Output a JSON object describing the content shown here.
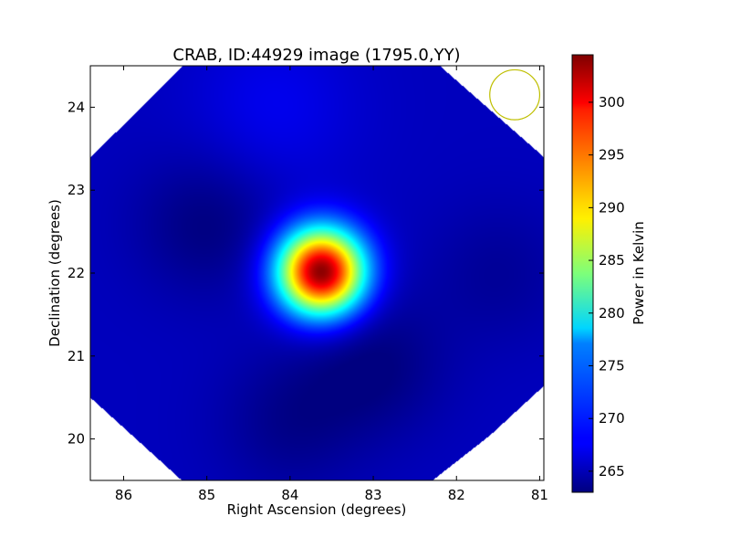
{
  "chart_data": {
    "type": "heatmap",
    "title": "CRAB, ID:44929 image (1795.0,YY)",
    "xlabel": "Right Ascension (degrees)",
    "ylabel": "Declination (degrees)",
    "xlim": [
      86.4,
      80.95
    ],
    "ylim": [
      19.5,
      24.5
    ],
    "x_ticks": [
      86,
      85,
      84,
      83,
      82,
      81
    ],
    "y_ticks": [
      20,
      21,
      22,
      23,
      24
    ],
    "colorbar": {
      "label": "Power in Kelvin",
      "colormap": "jet",
      "range": [
        263,
        304.5
      ],
      "ticks": [
        265,
        270,
        275,
        280,
        285,
        290,
        295,
        300
      ]
    },
    "source": {
      "ra": 83.63,
      "dec": 22.02,
      "peak_kelvin": 304.3,
      "sigma_deg": 0.36
    },
    "background_kelvin": 265.5,
    "dark_regions": [
      {
        "ra": 85.0,
        "dec": 22.6,
        "depth_kelvin": 2.5
      },
      {
        "ra": 83.0,
        "dec": 20.9,
        "depth_kelvin": 2.5
      },
      {
        "ra": 84.0,
        "dec": 20.2,
        "depth_kelvin": 2.0
      },
      {
        "ra": 81.5,
        "dec": 22.0,
        "depth_kelvin": 1.5
      }
    ],
    "bright_regions": [
      {
        "ra": 84.2,
        "dec": 24.0,
        "lift_kelvin": 2.0
      }
    ],
    "footprint_outline": [
      [
        85.3,
        24.5
      ],
      [
        82.2,
        24.5
      ],
      [
        80.95,
        23.4
      ],
      [
        80.95,
        20.65
      ],
      [
        81.6,
        20.05
      ],
      [
        82.3,
        19.5
      ],
      [
        85.3,
        19.5
      ],
      [
        86.4,
        20.5
      ],
      [
        86.4,
        23.4
      ]
    ],
    "beam_circle": {
      "ra": 81.3,
      "dec": 24.15,
      "radius_deg": 0.3,
      "color": "#bfbf00"
    }
  }
}
